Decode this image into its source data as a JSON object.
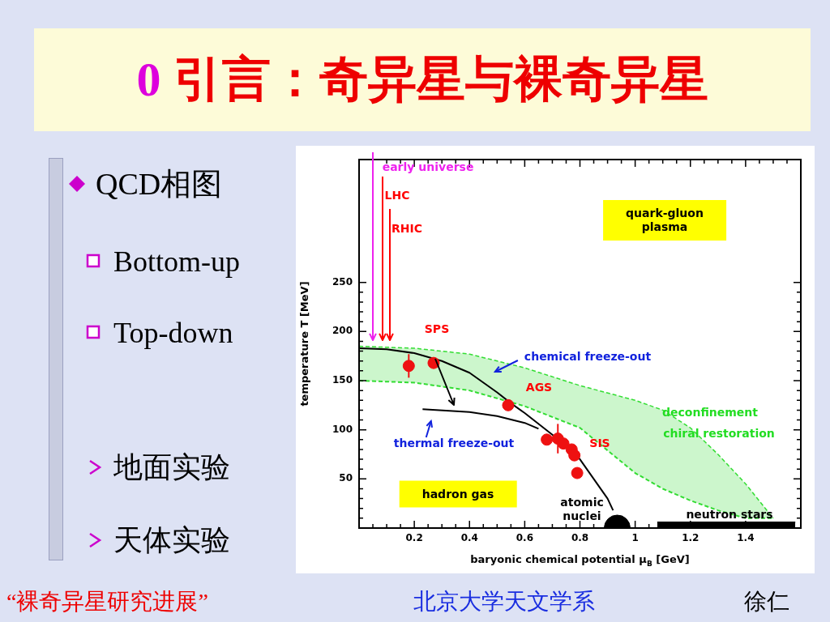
{
  "chart_data": {
    "type": "line",
    "title": "0 引言：奇异星与裸奇异星",
    "xlabel": "baryonic chemical potential μ$_{B}$ [GeV]",
    "ylabel": "temperature T [MeV]",
    "xlim": [
      0,
      1.6
    ],
    "ylim": [
      0,
      375
    ],
    "xticks": [
      {
        "value": 0.05,
        "label": null
      },
      {
        "value": 0.1,
        "label": null
      },
      {
        "value": 0.15,
        "label": null
      },
      0.2,
      {
        "value": 0.25,
        "label": null
      },
      {
        "value": 0.3,
        "label": null
      },
      {
        "value": 0.35,
        "label": null
      },
      0.4,
      {
        "value": 0.45,
        "label": null
      },
      {
        "value": 0.5,
        "label": null
      },
      {
        "value": 0.55,
        "label": null
      },
      0.6,
      {
        "value": 0.65,
        "label": null
      },
      {
        "value": 0.7,
        "label": null
      },
      {
        "value": 0.75,
        "label": null
      },
      0.8,
      {
        "value": 0.85,
        "label": null
      },
      {
        "value": 0.9,
        "label": null
      },
      {
        "value": 0.95,
        "label": null
      },
      1,
      {
        "value": 1.05,
        "label": null
      },
      {
        "value": 1.1,
        "label": null
      },
      {
        "value": 1.15,
        "label": null
      },
      1.2,
      {
        "value": 1.25,
        "label": null
      },
      {
        "value": 1.3,
        "label": null
      },
      {
        "value": 1.35,
        "label": null
      },
      1.4,
      {
        "value": 1.45,
        "label": null
      },
      {
        "value": 1.5,
        "label": null
      },
      {
        "value": 1.55,
        "label": null
      }
    ],
    "yticks": [
      {
        "value": 10,
        "label": null
      },
      {
        "value": 20,
        "label": null
      },
      {
        "value": 30,
        "label": null
      },
      {
        "value": 40,
        "label": null
      },
      50,
      {
        "value": 60,
        "label": null
      },
      {
        "value": 70,
        "label": null
      },
      {
        "value": 80,
        "label": null
      },
      {
        "value": 90,
        "label": null
      },
      100,
      {
        "value": 110,
        "label": null
      },
      {
        "value": 120,
        "label": null
      },
      {
        "value": 130,
        "label": null
      },
      {
        "value": 140,
        "label": null
      },
      150,
      {
        "value": 160,
        "label": null
      },
      {
        "value": 170,
        "label": null
      },
      {
        "value": 180,
        "label": null
      },
      {
        "value": 190,
        "label": null
      },
      200,
      {
        "value": 210,
        "label": null
      },
      {
        "value": 220,
        "label": null
      },
      {
        "value": 230,
        "label": null
      },
      {
        "value": 240,
        "label": null
      },
      250
    ],
    "grid": false,
    "legend": false,
    "series": [
      {
        "color": "#33dd33",
        "line_style": "dashed",
        "marker": "none",
        "x": [
          0,
          0.2,
          0.4,
          0.6,
          0.8,
          1.0,
          1.1,
          1.2,
          1.3,
          1.4,
          1.5
        ],
        "values": [
          150,
          148,
          140,
          124,
          102,
          56,
          40,
          28,
          18,
          10,
          10
        ]
      },
      {
        "type": "area",
        "color": "#33dd33",
        "line_style": "dashed",
        "x": [
          0,
          0.2,
          0.4,
          0.6,
          0.8,
          1.0,
          1.1,
          1.2,
          1.3,
          1.4,
          1.5
        ],
        "values": [
          185,
          183,
          177,
          163,
          145,
          130,
          120,
          102,
          75,
          45,
          10
        ]
      },
      {
        "type": "area",
        "color": "#000000",
        "line_style": "solid",
        "x": [
          1.08,
          1.58
        ],
        "values": [
          6,
          6
        ]
      },
      {
        "color": "#000000",
        "marker": "none",
        "x": [
          0,
          0.1,
          0.2,
          0.3,
          0.4,
          0.5,
          0.55,
          0.6,
          0.7,
          0.8,
          0.9,
          0.92
        ],
        "values": [
          183,
          182,
          178,
          170,
          158,
          138,
          127,
          117,
          95,
          70,
          30,
          18
        ]
      },
      {
        "color": "#000000",
        "marker": "none",
        "x": [
          0.23,
          0.4,
          0.5,
          0.6,
          0.65
        ],
        "values": [
          121,
          118,
          114,
          107,
          101
        ]
      },
      {
        "type": "scatter",
        "color": "#ee1111",
        "marker": "circle",
        "x": [
          0.18,
          0.27,
          0.54,
          0.68,
          0.72,
          0.74,
          0.77,
          0.78,
          0.79
        ],
        "values": [
          165,
          168,
          125,
          90,
          91,
          86,
          80,
          74,
          56
        ],
        "errors": [
          12,
          null,
          null,
          null,
          15,
          null,
          null,
          null,
          null
        ]
      },
      {
        "type": "bubble",
        "color": "#000000",
        "x": [
          0.935
        ],
        "values": [
          0
        ],
        "sizes": [
          1
        ]
      }
    ],
    "annotations": [
      "QCD相图",
      "Bottom-up",
      "Top-down",
      "地面实验",
      "天体实验",
      "“裸奇异星研究进展”",
      "北京大学天文学系",
      "徐仁",
      "early universe",
      "LHC",
      "RHIC",
      "SPS",
      "chemical freeze-out",
      "AGS",
      "thermal freeze-out",
      "SIS",
      "deconfinement",
      "chiral restoration",
      "hadron gas",
      "quark-gluon plasma",
      "atomic nuclei",
      "neutron stars"
    ]
  }
}
